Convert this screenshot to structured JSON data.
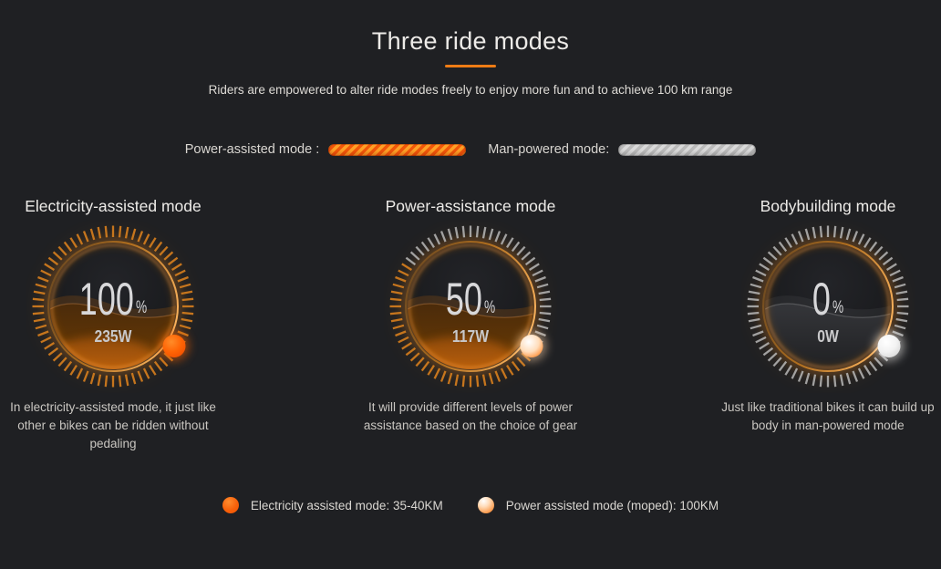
{
  "header": {
    "title": "Three ride modes",
    "subtitle": "Riders are empowered to alter ride modes freely to enjoy more fun and to achieve 100 km range"
  },
  "mode_legend": {
    "power_assisted": {
      "label": "Power-assisted mode :",
      "bar_color": "#f1570a",
      "bar_stripe_color": "#ffa126"
    },
    "man_powered": {
      "label": "Man-powered mode:",
      "bar_color": "#bababa",
      "bar_stripe_color": "#d9d9d9"
    }
  },
  "gauges": [
    {
      "title": "Electricity-assisted mode",
      "percent": 100,
      "percent_label": "100",
      "percent_unit": "%",
      "watt_label": "235W",
      "description": "In electricity-assisted mode, it just like other e bikes can be ridden without pedaling",
      "fill_style": "orange",
      "dot_style": "solid-orange",
      "dot_color": "#ff5702"
    },
    {
      "title": "Power-assistance mode",
      "percent": 50,
      "percent_label": "50",
      "percent_unit": "%",
      "watt_label": "117W",
      "description": "It will provide different levels of power assistance based on the choice of gear",
      "fill_style": "orange",
      "dot_style": "white-orange",
      "dot_color": "#ffb37a"
    },
    {
      "title": "Bodybuilding mode",
      "percent": 0,
      "percent_label": "0",
      "percent_unit": "%",
      "watt_label": "0W",
      "description": "Just like traditional bikes it can build up body in man-powered mode",
      "fill_style": "gray",
      "dot_style": "white",
      "dot_color": "#f2f2f2"
    }
  ],
  "range_legend": {
    "items": [
      {
        "label": "Electricity assisted mode: 35-40KM",
        "dot_style": "solid-orange",
        "dot_color": "#f8610a"
      },
      {
        "label": "Power assisted mode (moped): 100KM",
        "dot_style": "white-orange",
        "dot_color": "#f9923f"
      }
    ]
  },
  "colors": {
    "background": "#1f2023",
    "accent": "#ef7c15",
    "tick_orange": "#cf7a1e",
    "tick_gray": "#c0c0c0"
  }
}
